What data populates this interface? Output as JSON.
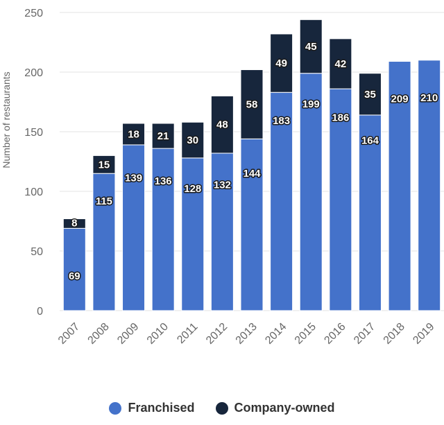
{
  "chart_data": {
    "type": "bar",
    "stacked": true,
    "categories": [
      "2007",
      "2008",
      "2009",
      "2010",
      "2011",
      "2012",
      "2013",
      "2014",
      "2015",
      "2016",
      "2017",
      "2018",
      "2019"
    ],
    "series": [
      {
        "name": "Franchised",
        "values": [
          69,
          115,
          139,
          136,
          128,
          132,
          144,
          183,
          199,
          186,
          164,
          209,
          210
        ],
        "color": "#4472ca"
      },
      {
        "name": "Company-owned",
        "values": [
          8,
          15,
          18,
          21,
          30,
          48,
          58,
          49,
          45,
          42,
          35,
          0,
          0
        ],
        "color": "#17263c"
      }
    ],
    "ylabel": "Number of restaurants",
    "xlabel": "",
    "ylim": [
      0,
      250
    ],
    "yticks": [
      0,
      50,
      100,
      150,
      200,
      250
    ],
    "grid": true,
    "legend_position": "bottom"
  },
  "legend": {
    "items": [
      {
        "label": "Franchised",
        "color": "#4472ca"
      },
      {
        "label": "Company-owned",
        "color": "#17263c"
      }
    ]
  }
}
